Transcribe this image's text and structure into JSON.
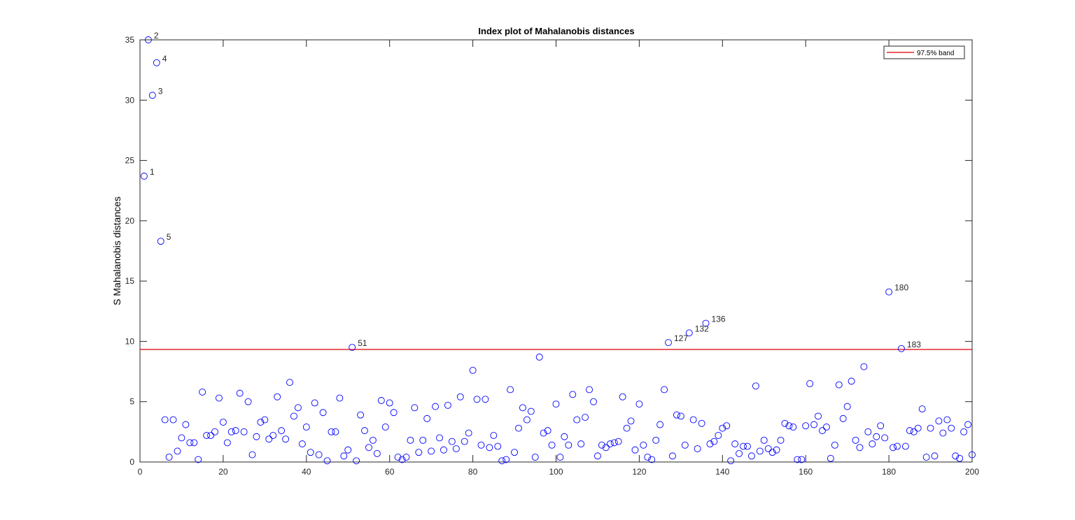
{
  "chart_data": {
    "type": "scatter",
    "title": "Index plot of Mahalanobis distances",
    "xlabel": "",
    "ylabel": "S Mahalanobis distances",
    "xlim": [
      0,
      200
    ],
    "ylim": [
      0,
      35
    ],
    "xticks": [
      0,
      20,
      40,
      60,
      80,
      100,
      120,
      140,
      160,
      180,
      200
    ],
    "yticks": [
      0,
      5,
      10,
      15,
      20,
      25,
      30,
      35
    ],
    "grid": false,
    "legend": {
      "position": "top-right",
      "entries": [
        "97.5% band"
      ]
    },
    "marker_color": "#0000ff",
    "band_color": "#e8272b",
    "band": {
      "name": "97.5% band",
      "value": 9.33
    },
    "series": [
      {
        "name": "Mahalanobis distance",
        "x": [
          1,
          2,
          3,
          4,
          5,
          6,
          7,
          8,
          9,
          10,
          11,
          12,
          13,
          14,
          15,
          16,
          17,
          18,
          19,
          20,
          21,
          22,
          23,
          24,
          25,
          26,
          27,
          28,
          29,
          30,
          31,
          32,
          33,
          34,
          35,
          36,
          37,
          38,
          39,
          40,
          41,
          42,
          43,
          44,
          45,
          46,
          47,
          48,
          49,
          50,
          51,
          52,
          53,
          54,
          55,
          56,
          57,
          58,
          59,
          60,
          61,
          62,
          63,
          64,
          65,
          66,
          67,
          68,
          69,
          70,
          71,
          72,
          73,
          74,
          75,
          76,
          77,
          78,
          79,
          80,
          81,
          82,
          83,
          84,
          85,
          86,
          87,
          88,
          89,
          90,
          91,
          92,
          93,
          94,
          95,
          96,
          97,
          98,
          99,
          100,
          101,
          102,
          103,
          104,
          105,
          106,
          107,
          108,
          109,
          110,
          111,
          112,
          113,
          114,
          115,
          116,
          117,
          118,
          119,
          120,
          121,
          122,
          123,
          124,
          125,
          126,
          127,
          128,
          129,
          130,
          131,
          132,
          133,
          134,
          135,
          136,
          137,
          138,
          139,
          140,
          141,
          142,
          143,
          144,
          145,
          146,
          147,
          148,
          149,
          150,
          151,
          152,
          153,
          154,
          155,
          156,
          157,
          158,
          159,
          160,
          161,
          162,
          163,
          164,
          165,
          166,
          167,
          168,
          169,
          170,
          171,
          172,
          173,
          174,
          175,
          176,
          177,
          178,
          179,
          180,
          181,
          182,
          183,
          184,
          185,
          186,
          187,
          188,
          189,
          190,
          191,
          192,
          193,
          194,
          195,
          196,
          197,
          198,
          199,
          200
        ],
        "values": [
          23.7,
          35.0,
          30.4,
          33.1,
          18.3,
          3.5,
          0.4,
          3.5,
          0.9,
          2.0,
          3.1,
          1.6,
          1.6,
          0.2,
          5.8,
          2.2,
          2.2,
          2.5,
          5.3,
          3.3,
          1.6,
          2.5,
          2.6,
          5.7,
          2.5,
          5.0,
          0.6,
          2.1,
          3.3,
          3.5,
          1.9,
          2.2,
          5.4,
          2.6,
          1.9,
          6.6,
          3.8,
          4.5,
          1.5,
          2.9,
          0.8,
          4.9,
          0.6,
          4.1,
          0.1,
          2.5,
          2.5,
          5.3,
          0.5,
          1.0,
          9.5,
          0.1,
          3.9,
          2.6,
          1.2,
          1.8,
          0.7,
          5.1,
          2.9,
          4.9,
          4.1,
          0.4,
          0.2,
          0.4,
          1.8,
          4.5,
          0.8,
          1.8,
          3.6,
          0.9,
          4.6,
          2.0,
          1.0,
          4.7,
          1.7,
          1.1,
          5.4,
          1.7,
          2.4,
          7.6,
          5.2,
          1.4,
          5.2,
          1.2,
          2.2,
          1.3,
          0.1,
          0.2,
          6.0,
          0.8,
          2.8,
          4.5,
          3.5,
          4.2,
          0.4,
          8.7,
          2.4,
          2.6,
          1.4,
          4.8,
          0.4,
          2.1,
          1.4,
          5.6,
          3.5,
          1.5,
          3.7,
          6.0,
          5.0,
          0.5,
          1.4,
          1.2,
          1.5,
          1.6,
          1.7,
          5.4,
          2.8,
          3.4,
          1.0,
          4.8,
          1.4,
          0.4,
          0.2,
          1.8,
          3.1,
          6.0,
          9.9,
          0.5,
          3.9,
          3.8,
          1.4,
          10.7,
          3.5,
          1.1,
          3.2,
          11.5,
          1.5,
          1.7,
          2.2,
          2.8,
          3.0,
          0.1,
          1.5,
          0.7,
          1.3,
          1.3,
          0.5,
          6.3,
          0.9,
          1.8,
          1.1,
          0.8,
          1.0,
          1.8,
          3.2,
          3.0,
          2.9,
          0.2,
          0.2,
          3.0,
          6.5,
          3.1,
          3.8,
          2.6,
          2.9,
          0.3,
          1.4,
          6.4,
          3.6,
          4.6,
          6.7,
          1.8,
          1.2,
          7.9,
          2.5,
          1.5,
          2.1,
          3.0,
          2.0,
          14.1,
          1.2,
          1.3,
          9.4,
          1.3,
          2.6,
          2.5,
          2.8,
          4.4,
          0.4,
          2.8,
          0.5,
          3.4,
          2.4,
          3.5,
          2.8,
          0.5,
          0.3,
          2.5,
          3.1,
          0.6
        ]
      }
    ],
    "annotations": [
      {
        "index": 1,
        "label": "1"
      },
      {
        "index": 2,
        "label": "2"
      },
      {
        "index": 3,
        "label": "3"
      },
      {
        "index": 4,
        "label": "4"
      },
      {
        "index": 5,
        "label": "5"
      },
      {
        "index": 51,
        "label": "51"
      },
      {
        "index": 127,
        "label": "127"
      },
      {
        "index": 132,
        "label": "132"
      },
      {
        "index": 136,
        "label": "136"
      },
      {
        "index": 180,
        "label": "180"
      },
      {
        "index": 183,
        "label": "183"
      }
    ]
  }
}
